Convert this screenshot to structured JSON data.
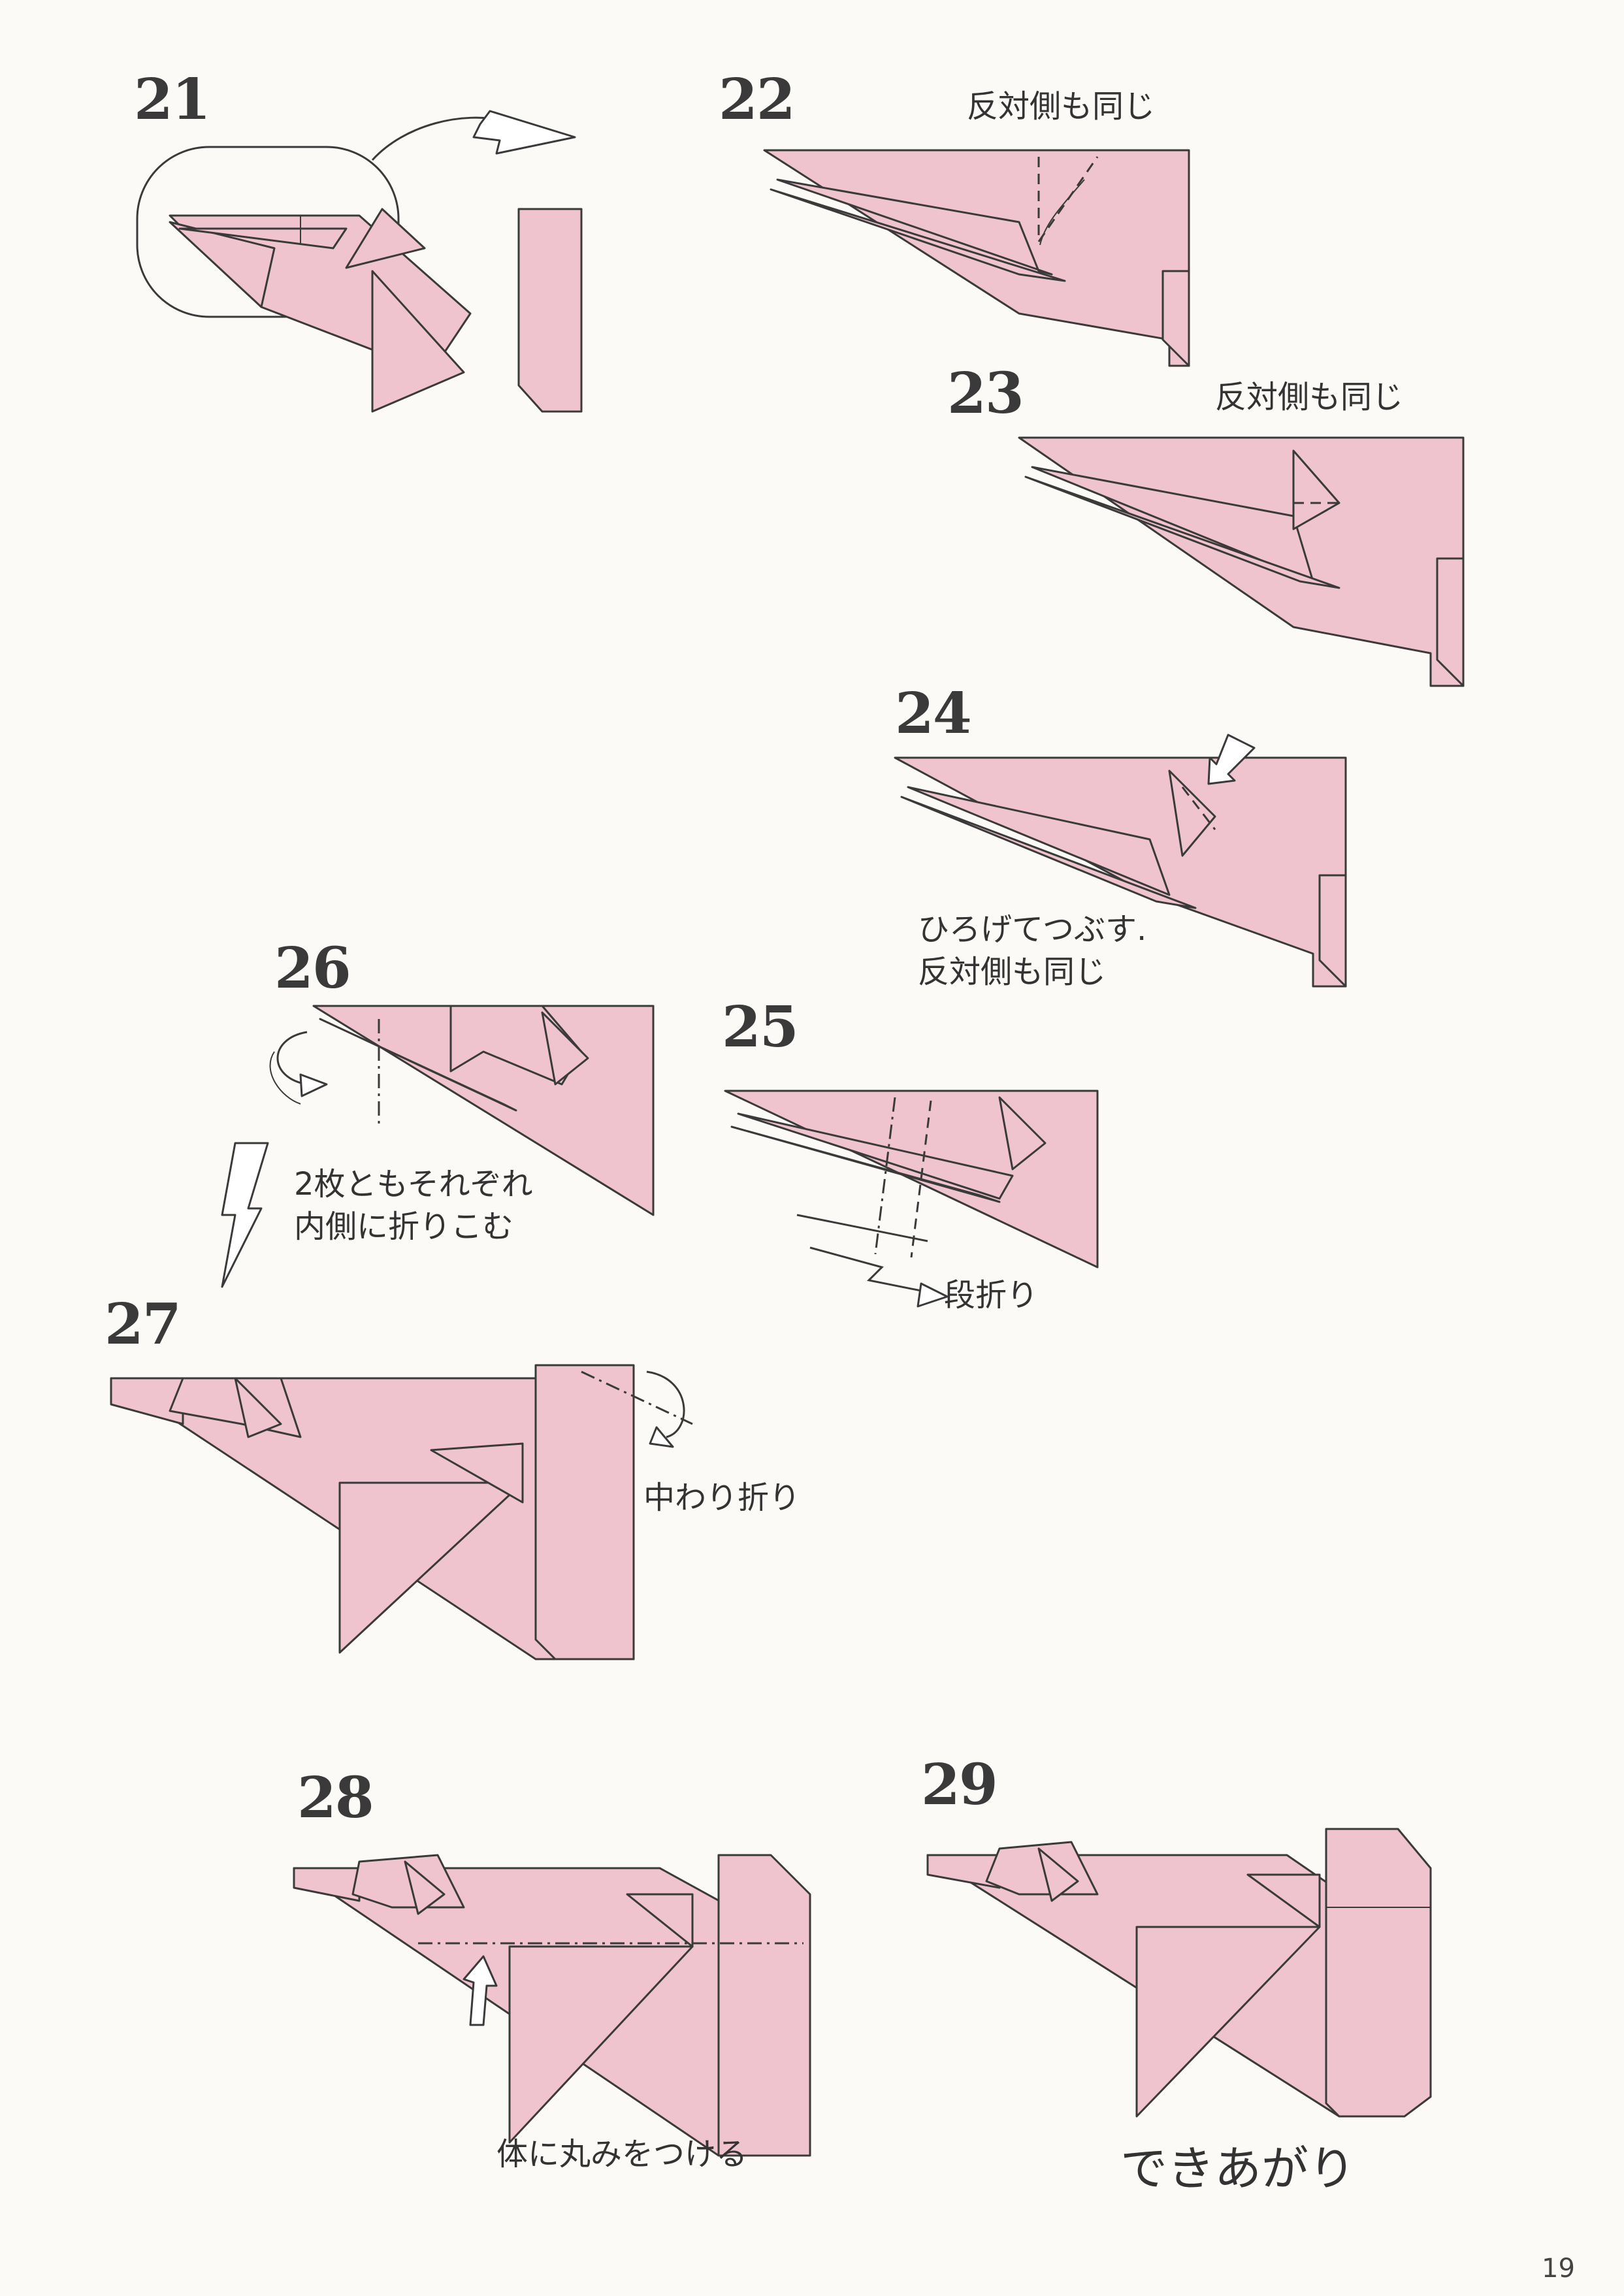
{
  "steps": [
    {
      "number": "21"
    },
    {
      "number": "22",
      "caption": "反対側も同じ"
    },
    {
      "number": "23",
      "caption": "反対側も同じ"
    },
    {
      "number": "24",
      "caption_line1": "ひろげてつぶす.",
      "caption_line2": "反対側も同じ"
    },
    {
      "number": "25",
      "caption": "段折り"
    },
    {
      "number": "26",
      "caption_line1": "2枚ともそれぞれ",
      "caption_line2": "内側に折りこむ"
    },
    {
      "number": "27",
      "caption": "中わり折り"
    },
    {
      "number": "28",
      "caption": "体に丸みをつける"
    },
    {
      "number": "29",
      "caption": "できあがり"
    }
  ],
  "page_number": "19",
  "colors": {
    "paper": "#efc4ce",
    "line": "#3a3a3a",
    "background": "#fbfaf7"
  }
}
